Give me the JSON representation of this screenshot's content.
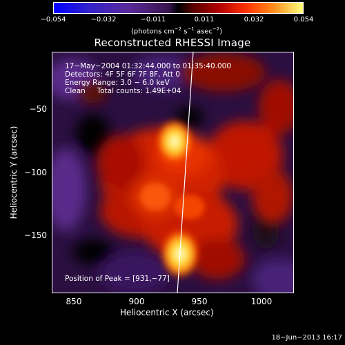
{
  "colorbar": {
    "ticks": [
      "−0.054",
      "−0.032",
      "−0.011",
      "0.011",
      "0.032",
      "0.054"
    ],
    "unit_prefix": "(photons cm",
    "unit_exp1": "−2",
    "unit_mid1": " s",
    "unit_exp2": "−1",
    "unit_mid2": " asec",
    "unit_exp3": "−2",
    "unit_suffix": ")",
    "range": [
      -0.054,
      0.054
    ]
  },
  "title": "Reconstructed RHESSI Image",
  "info": {
    "time": "17−May−2004 01:32:44.000 to 01:35:40.000",
    "detectors": "Detectors: 4F 5F 6F 7F 8F, Att 0",
    "energy": "Energy Range: 3.0 − 6.0 keV",
    "clean": "Clean     Total counts: 1.49E+04",
    "peak": "Position of Peak = [931,−77]"
  },
  "axes": {
    "xlabel": "Heliocentric X (arcsec)",
    "ylabel": "Heliocentric Y (arcsec)",
    "xticks": [
      "850",
      "900",
      "950",
      "1000"
    ],
    "yticks": [
      "−50",
      "−100",
      "−150"
    ],
    "xlim": [
      833,
      1025
    ],
    "ylim": [
      -197,
      -5
    ]
  },
  "footer": {
    "date": "18−Jun−2013 16:17"
  },
  "colors": {
    "background": "#000000",
    "foreground": "#ffffff"
  }
}
